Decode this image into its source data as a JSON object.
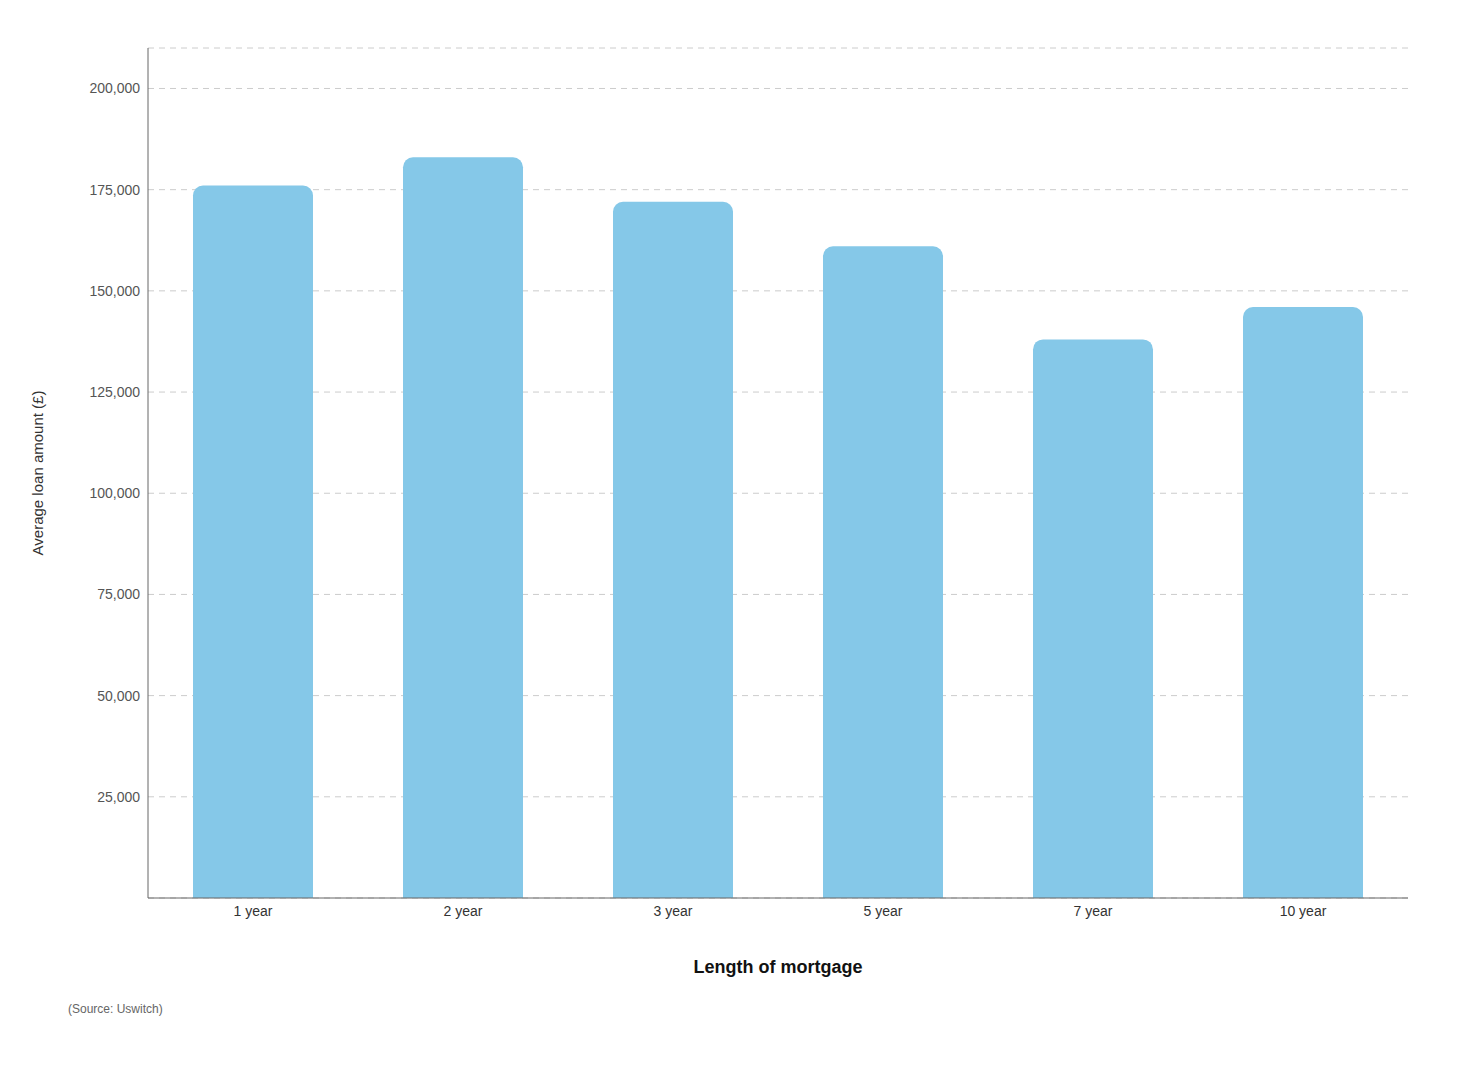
{
  "chart_data": {
    "type": "bar",
    "categories": [
      "1 year",
      "2 year",
      "3 year",
      "5 year",
      "7 year",
      "10 year"
    ],
    "values": [
      176000,
      183000,
      172000,
      161000,
      138000,
      146000
    ],
    "color": "#85C8E8",
    "ylabel": "Average loan amount (£)",
    "xlabel": "Length of mortgage",
    "annotations": [
      "(Source: Uswitch)"
    ],
    "ylim": [
      0,
      210000
    ],
    "yticks": [
      {
        "value": 25000,
        "label": "25,000"
      },
      {
        "value": 50000,
        "label": "50,000"
      },
      {
        "value": 75000,
        "label": "75,000"
      },
      {
        "value": 100000,
        "label": "100,000"
      },
      {
        "value": 125000,
        "label": "125,000"
      },
      {
        "value": 150000,
        "label": "150,000"
      },
      {
        "value": 175000,
        "label": "175,000"
      },
      {
        "value": 200000,
        "label": "200,000"
      }
    ],
    "grid": true
  }
}
